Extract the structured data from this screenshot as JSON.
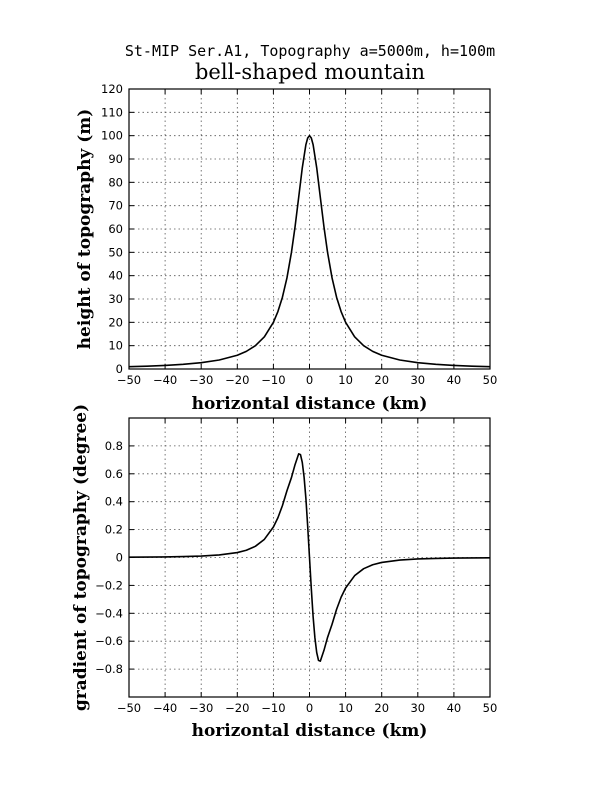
{
  "page": {
    "suptitle": "St-MIP Ser.A1, Topography a=5000m, h=100m",
    "title": "bell-shaped mountain"
  },
  "chart_data": [
    {
      "type": "line",
      "xlabel": "horizontal distance (km)",
      "ylabel": "height of topography (m)",
      "xlim": [
        -50,
        50
      ],
      "ylim": [
        0,
        120
      ],
      "xticks": [
        "-50",
        "-40",
        "-30",
        "-20",
        "-10",
        "0",
        "10",
        "20",
        "30",
        "40",
        "50"
      ],
      "yticks": [
        "0",
        "10",
        "20",
        "30",
        "40",
        "50",
        "60",
        "70",
        "80",
        "90",
        "100",
        "110",
        "120"
      ],
      "grid": true,
      "line_color": "#000000",
      "series": [
        {
          "x": [
            -50,
            -45,
            -40,
            -35,
            -30,
            -25,
            -20,
            -17.5,
            -15,
            -12.5,
            -10,
            -8.75,
            -7.5,
            -6.25,
            -5,
            -4,
            -3,
            -2,
            -1,
            -0.5,
            0,
            0.5,
            1,
            2,
            3,
            4,
            5,
            6.25,
            7.5,
            8.75,
            10,
            12.5,
            15,
            17.5,
            20,
            25,
            30,
            35,
            40,
            45,
            50
          ],
          "y": [
            0.99,
            1.22,
            1.54,
            2.0,
            2.7,
            3.85,
            5.88,
            7.55,
            10.0,
            13.79,
            20.0,
            24.62,
            30.77,
            39.02,
            50.0,
            60.98,
            73.53,
            86.21,
            96.15,
            99.01,
            100.0,
            99.01,
            96.15,
            86.21,
            73.53,
            60.98,
            50.0,
            39.02,
            30.77,
            24.62,
            20.0,
            13.79,
            10.0,
            7.55,
            5.88,
            3.85,
            2.7,
            2.0,
            1.54,
            1.22,
            0.99
          ]
        }
      ]
    },
    {
      "type": "line",
      "xlabel": "horizontal distance (km)",
      "ylabel": "gradient of topography (degree)",
      "xlim": [
        -50,
        50
      ],
      "ylim": [
        -1,
        1
      ],
      "xticks": [
        "-50",
        "-40",
        "-30",
        "-20",
        "-10",
        "0",
        "10",
        "20",
        "30",
        "40",
        "50"
      ],
      "yticks": [
        "-0.8",
        "-0.6",
        "-0.4",
        "-0.2",
        "0",
        "0.2",
        "0.4",
        "0.6",
        "0.8"
      ],
      "grid": true,
      "line_color": "#000000",
      "series": [
        {
          "x": [
            -50,
            -45,
            -40,
            -35,
            -30,
            -25,
            -20,
            -17.5,
            -15,
            -12.5,
            -10,
            -8.75,
            -7.5,
            -6.25,
            -5,
            -4,
            -3,
            -2.5,
            -2,
            -1.5,
            -1,
            -0.5,
            0,
            0.5,
            1,
            1.5,
            2,
            2.5,
            3,
            4,
            5,
            6.25,
            7.5,
            8.75,
            10,
            12.5,
            15,
            17.5,
            20,
            25,
            30,
            35,
            40,
            45,
            50
          ],
          "y": [
            0.0023,
            0.0031,
            0.0044,
            0.0065,
            0.0105,
            0.0182,
            0.0355,
            0.0521,
            0.0802,
            0.1302,
            0.2188,
            0.2849,
            0.3719,
            0.4788,
            0.573,
            0.666,
            0.743,
            0.7376,
            0.6813,
            0.5761,
            0.4238,
            0.2238,
            0,
            -0.2238,
            -0.4238,
            -0.5761,
            -0.6813,
            -0.7376,
            -0.743,
            -0.666,
            -0.573,
            -0.4788,
            -0.3719,
            -0.2849,
            -0.2188,
            -0.1302,
            -0.0802,
            -0.0521,
            -0.0355,
            -0.0182,
            -0.0105,
            -0.0065,
            -0.0044,
            -0.0031,
            -0.0023
          ]
        }
      ]
    }
  ]
}
